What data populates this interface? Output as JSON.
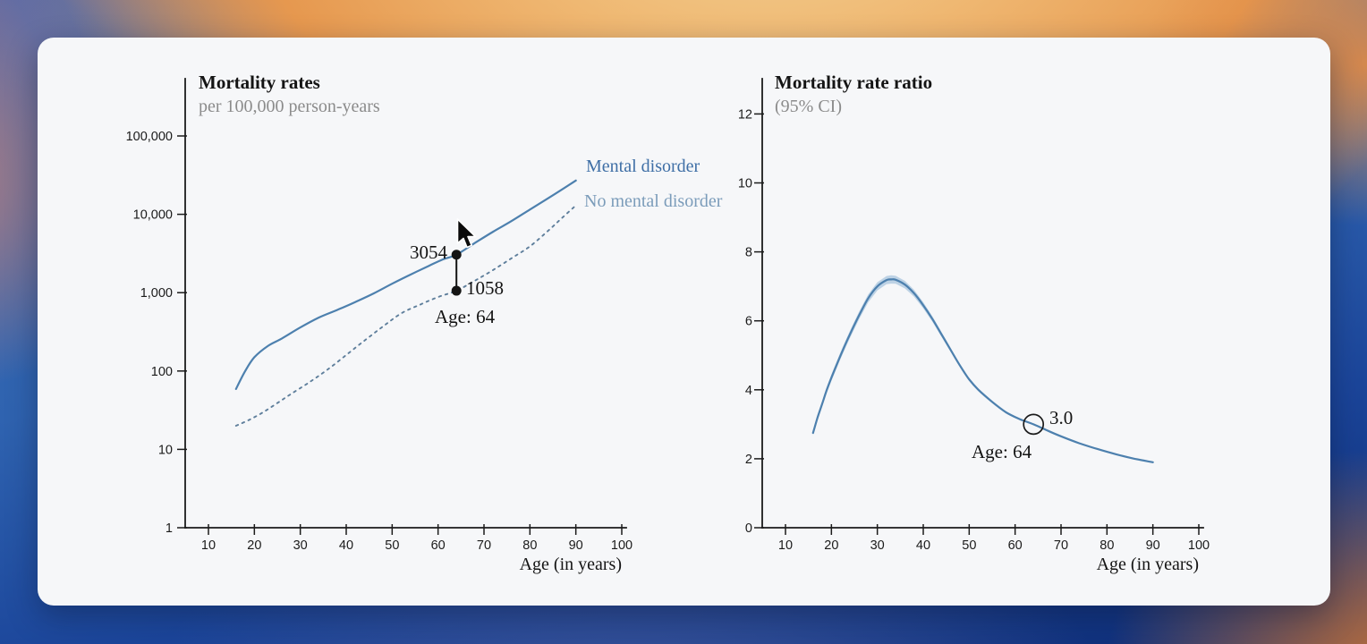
{
  "window": {
    "card_background": "#f6f7f9"
  },
  "colors": {
    "line_blue": "#4d80ae",
    "ci_band_blue": "#a9c6de",
    "dashed_blue": "#5f7f9c",
    "legend_mental_blue": "#3f6fa6",
    "legend_no_mental_blue": "#7b9cba",
    "annotation_black": "#141414"
  },
  "left_chart": {
    "title": "Mortality rates",
    "subtitle": "per 100,000 person-years",
    "x_axis_label": "Age (in years)",
    "x_tick_labels": [
      "10",
      "20",
      "30",
      "40",
      "50",
      "60",
      "70",
      "80",
      "90",
      "100"
    ],
    "y_tick_labels": [
      "1",
      "10",
      "100",
      "1,000",
      "10,000",
      "100,000"
    ],
    "legend": {
      "mental": {
        "label": "Mental disorder",
        "color": "#3f6fa6"
      },
      "no_mental": {
        "label": "No mental disorder",
        "color": "#7b9cba"
      }
    },
    "annotation": {
      "mental_value": "3054",
      "no_mental_value": "1058",
      "age": "Age: 64"
    }
  },
  "right_chart": {
    "title": "Mortality rate ratio",
    "subtitle": "(95% CI)",
    "x_axis_label": "Age (in years)",
    "x_tick_labels": [
      "10",
      "20",
      "30",
      "40",
      "50",
      "60",
      "70",
      "80",
      "90",
      "100"
    ],
    "y_tick_labels": [
      "0",
      "2",
      "4",
      "6",
      "8",
      "10",
      "12"
    ],
    "annotation": {
      "ratio_value": "3.0",
      "age": "Age: 64"
    }
  },
  "chart_data": [
    {
      "type": "line",
      "title": "Mortality rates",
      "subtitle": "per 100,000 person-years",
      "xlabel": "Age (in years)",
      "x_ticks": [
        10,
        20,
        30,
        40,
        50,
        60,
        70,
        80,
        90,
        100
      ],
      "y_scale": "log10",
      "y_ticks": [
        1,
        10,
        100,
        1000,
        10000,
        100000
      ],
      "ylim": [
        1,
        500000
      ],
      "xlim": [
        5,
        101
      ],
      "series": [
        {
          "name": "Mental disorder",
          "line_style": "solid",
          "color": "#4d80ae",
          "points": [
            [
              16,
              59
            ],
            [
              18,
              100
            ],
            [
              20,
              150
            ],
            [
              23,
              210
            ],
            [
              26,
              260
            ],
            [
              30,
              360
            ],
            [
              34,
              480
            ],
            [
              38,
              600
            ],
            [
              42,
              760
            ],
            [
              46,
              980
            ],
            [
              50,
              1300
            ],
            [
              54,
              1700
            ],
            [
              58,
              2200
            ],
            [
              61,
              2650
            ],
            [
              64,
              3054
            ],
            [
              68,
              4300
            ],
            [
              72,
              6000
            ],
            [
              76,
              8200
            ],
            [
              80,
              11500
            ],
            [
              85,
              17500
            ],
            [
              90,
              27000
            ]
          ]
        },
        {
          "name": "No mental disorder",
          "line_style": "dashed",
          "color": "#5f7f9c",
          "points": [
            [
              16,
              20
            ],
            [
              19,
              24
            ],
            [
              22,
              30
            ],
            [
              25,
              39
            ],
            [
              28,
              51
            ],
            [
              32,
              72
            ],
            [
              36,
              105
            ],
            [
              40,
              160
            ],
            [
              44,
              245
            ],
            [
              48,
              370
            ],
            [
              52,
              545
            ],
            [
              56,
              700
            ],
            [
              60,
              880
            ],
            [
              64,
              1058
            ],
            [
              68,
              1420
            ],
            [
              72,
              1950
            ],
            [
              76,
              2750
            ],
            [
              80,
              3900
            ],
            [
              84,
              6200
            ],
            [
              87,
              9000
            ],
            [
              90,
              13000
            ]
          ]
        }
      ],
      "highlight": {
        "age": 64,
        "mental": 3054,
        "no_mental": 1058
      }
    },
    {
      "type": "line",
      "title": "Mortality rate ratio",
      "subtitle": "(95% CI)",
      "xlabel": "Age (in years)",
      "x_ticks": [
        10,
        20,
        30,
        40,
        50,
        60,
        70,
        80,
        90,
        100
      ],
      "y_ticks": [
        0,
        2,
        4,
        6,
        8,
        10,
        12
      ],
      "ylim": [
        0,
        13
      ],
      "xlim": [
        5,
        101
      ],
      "series": [
        {
          "name": "Mortality rate ratio",
          "color": "#4d80ae",
          "ci_color": "#a9c6de",
          "points": [
            [
              16,
              2.75
            ],
            [
              17,
              3.2
            ],
            [
              18,
              3.6
            ],
            [
              19,
              4.0
            ],
            [
              20,
              4.35
            ],
            [
              22,
              5.0
            ],
            [
              24,
              5.6
            ],
            [
              26,
              6.15
            ],
            [
              28,
              6.65
            ],
            [
              30,
              7.0
            ],
            [
              32,
              7.18
            ],
            [
              33,
              7.2
            ],
            [
              34,
              7.19
            ],
            [
              36,
              7.05
            ],
            [
              38,
              6.8
            ],
            [
              40,
              6.45
            ],
            [
              42,
              6.05
            ],
            [
              44,
              5.6
            ],
            [
              46,
              5.15
            ],
            [
              48,
              4.7
            ],
            [
              50,
              4.3
            ],
            [
              52,
              4.0
            ],
            [
              55,
              3.65
            ],
            [
              58,
              3.35
            ],
            [
              61,
              3.15
            ],
            [
              64,
              3.0
            ],
            [
              67,
              2.82
            ],
            [
              70,
              2.65
            ],
            [
              74,
              2.45
            ],
            [
              78,
              2.28
            ],
            [
              82,
              2.13
            ],
            [
              86,
              2.0
            ],
            [
              90,
              1.9
            ]
          ],
          "ci_halfwidth": [
            0.07,
            0.08,
            0.085,
            0.09,
            0.095,
            0.1,
            0.105,
            0.11,
            0.115,
            0.12,
            0.12,
            0.12,
            0.115,
            0.11,
            0.1,
            0.09,
            0.08,
            0.07,
            0.06,
            0.05,
            0.045,
            0.04,
            0.035,
            0.03,
            0.025,
            0.022,
            0.02,
            0.02,
            0.018,
            0.016,
            0.015,
            0.014,
            0.013
          ]
        }
      ],
      "highlight": {
        "age": 64,
        "ratio": 3.0
      }
    }
  ]
}
